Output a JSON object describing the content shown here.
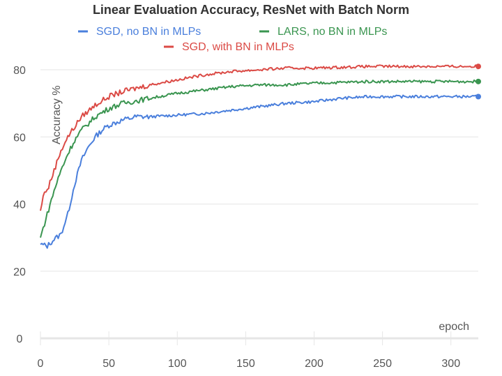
{
  "chart_data": {
    "type": "line",
    "title": "Linear Evaluation Accuracy, ResNet with Batch Norm",
    "xlabel": "epoch",
    "ylabel": "Accuracy %",
    "xlim": [
      0,
      320
    ],
    "ylim": [
      0,
      90
    ],
    "xticks": [
      "0",
      "50",
      "100",
      "150",
      "200",
      "250",
      "300"
    ],
    "yticks": [
      "0",
      "20",
      "40",
      "60",
      "80"
    ],
    "grid": true,
    "legend_position": "top",
    "series": [
      {
        "name": "SGD, no BN in MLPs",
        "color": "#4a7fdc",
        "x": [
          0,
          5,
          10,
          15,
          20,
          25,
          30,
          35,
          40,
          45,
          50,
          60,
          70,
          80,
          100,
          120,
          140,
          160,
          180,
          200,
          220,
          240,
          260,
          280,
          300,
          320
        ],
        "y": [
          28,
          27.5,
          29.5,
          31,
          37,
          46,
          53,
          57,
          60,
          62,
          63.5,
          65,
          66,
          66,
          66.5,
          67,
          68,
          69,
          70,
          70.5,
          71.5,
          72,
          72,
          72,
          72,
          72
        ]
      },
      {
        "name": "LARS, no BN in MLPs",
        "color": "#3a9550",
        "x": [
          0,
          5,
          10,
          15,
          20,
          25,
          30,
          40,
          50,
          60,
          80,
          100,
          120,
          140,
          160,
          180,
          200,
          240,
          280,
          320
        ],
        "y": [
          30,
          37,
          44,
          50,
          55,
          59,
          62,
          66,
          68.5,
          70,
          71.5,
          73,
          74,
          75,
          75.5,
          75.5,
          76,
          76.5,
          76.5,
          76.5
        ]
      },
      {
        "name": "SGD, with BN in MLPs",
        "color": "#db4a45",
        "x": [
          0,
          3,
          5,
          10,
          15,
          20,
          25,
          30,
          40,
          50,
          60,
          80,
          100,
          120,
          140,
          160,
          180,
          200,
          240,
          280,
          320
        ],
        "y": [
          38,
          44,
          44,
          50,
          56,
          60,
          63,
          66,
          69.5,
          72,
          73.5,
          75.5,
          77,
          78.5,
          79.5,
          80,
          80.5,
          80.5,
          81,
          81,
          81
        ]
      }
    ]
  }
}
